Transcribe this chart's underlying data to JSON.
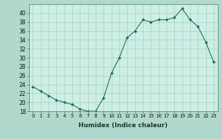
{
  "x": [
    0,
    1,
    2,
    3,
    4,
    5,
    6,
    7,
    8,
    9,
    10,
    11,
    12,
    13,
    14,
    15,
    16,
    17,
    18,
    19,
    20,
    21,
    22,
    23
  ],
  "y": [
    23.5,
    22.5,
    21.5,
    20.5,
    20.0,
    19.5,
    18.5,
    18.0,
    18.0,
    21.0,
    26.5,
    30.0,
    34.5,
    36.0,
    38.5,
    38.0,
    38.5,
    38.5,
    39.0,
    41.0,
    38.5,
    37.0,
    33.5,
    29.0
  ],
  "xlabel": "Humidex (Indice chaleur)",
  "xlim": [
    -0.5,
    23.5
  ],
  "ylim": [
    18,
    42
  ],
  "yticks": [
    18,
    20,
    22,
    24,
    26,
    28,
    30,
    32,
    34,
    36,
    38,
    40
  ],
  "xticks": [
    0,
    1,
    2,
    3,
    4,
    5,
    6,
    7,
    8,
    9,
    10,
    11,
    12,
    13,
    14,
    15,
    16,
    17,
    18,
    19,
    20,
    21,
    22,
    23
  ],
  "line_color": "#1a6b5a",
  "fig_bg": "#b0d8cc",
  "plot_bg": "#cdeee5",
  "grid_color": "#aaccbb"
}
